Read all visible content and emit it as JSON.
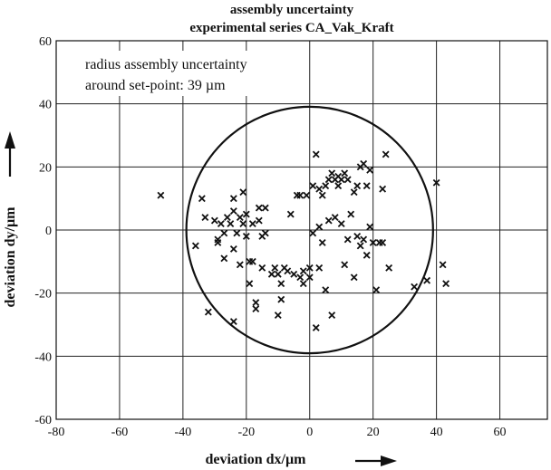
{
  "chart_data": {
    "type": "scatter",
    "title": "assembly uncertainty",
    "subtitle": "experimental series CA_Vak_Kraft",
    "xlabel": "deviation  dx/µm",
    "ylabel": "deviation  dy/µm",
    "xlim": [
      -80,
      75
    ],
    "ylim": [
      -60,
      60
    ],
    "xticks": [
      -80,
      -60,
      -40,
      -20,
      0,
      20,
      40,
      60
    ],
    "yticks": [
      -60,
      -40,
      -20,
      0,
      20,
      40,
      60
    ],
    "grid": true,
    "marker": "x",
    "annotation": {
      "line1": "radius assembly uncertainty",
      "line2": "around set-point: 39 µm"
    },
    "circle": {
      "center": [
        0,
        0
      ],
      "radius": 39
    },
    "points": [
      [
        -47,
        11
      ],
      [
        -36,
        -5
      ],
      [
        -34,
        10
      ],
      [
        -33,
        4
      ],
      [
        -32,
        -26
      ],
      [
        -30,
        3
      ],
      [
        -29,
        -3
      ],
      [
        -29,
        -4
      ],
      [
        -28,
        2
      ],
      [
        -27,
        -1
      ],
      [
        -27,
        -9
      ],
      [
        -26,
        4
      ],
      [
        -25,
        2
      ],
      [
        -24,
        10
      ],
      [
        -24,
        6
      ],
      [
        -24,
        -6
      ],
      [
        -24,
        -29
      ],
      [
        -23,
        -1
      ],
      [
        -22,
        4
      ],
      [
        -22,
        -11
      ],
      [
        -21,
        12
      ],
      [
        -21,
        2
      ],
      [
        -20,
        5
      ],
      [
        -20,
        -2
      ],
      [
        -19,
        -10
      ],
      [
        -19,
        -17
      ],
      [
        -18,
        2
      ],
      [
        -18,
        -10
      ],
      [
        -17,
        -23
      ],
      [
        -17,
        -25
      ],
      [
        -16,
        7
      ],
      [
        -16,
        3
      ],
      [
        -15,
        -2
      ],
      [
        -15,
        -12
      ],
      [
        -14,
        -1
      ],
      [
        -14,
        7
      ],
      [
        -12,
        -14
      ],
      [
        -11,
        -12
      ],
      [
        -10,
        -14
      ],
      [
        -10,
        -27
      ],
      [
        -9,
        -17
      ],
      [
        -9,
        -22
      ],
      [
        -8,
        -12
      ],
      [
        -7,
        -13
      ],
      [
        -6,
        5
      ],
      [
        -5,
        -14
      ],
      [
        -4,
        11
      ],
      [
        -3,
        11
      ],
      [
        -3,
        -15
      ],
      [
        -2,
        -17
      ],
      [
        -2,
        -13
      ],
      [
        -1,
        11
      ],
      [
        0,
        -15
      ],
      [
        0,
        -12
      ],
      [
        1,
        14
      ],
      [
        1,
        -1
      ],
      [
        2,
        24
      ],
      [
        2,
        -31
      ],
      [
        3,
        13
      ],
      [
        3,
        1
      ],
      [
        3,
        -12
      ],
      [
        4,
        11
      ],
      [
        4,
        -4
      ],
      [
        5,
        14
      ],
      [
        5,
        -19
      ],
      [
        6,
        16
      ],
      [
        6,
        3
      ],
      [
        7,
        18
      ],
      [
        7,
        -27
      ],
      [
        8,
        16
      ],
      [
        8,
        4
      ],
      [
        9,
        17
      ],
      [
        9,
        14
      ],
      [
        10,
        16
      ],
      [
        10,
        2
      ],
      [
        11,
        18
      ],
      [
        11,
        -11
      ],
      [
        12,
        16
      ],
      [
        12,
        -3
      ],
      [
        13,
        5
      ],
      [
        14,
        12
      ],
      [
        14,
        -15
      ],
      [
        15,
        14
      ],
      [
        15,
        -2
      ],
      [
        16,
        20
      ],
      [
        16,
        -5
      ],
      [
        17,
        21
      ],
      [
        17,
        -3
      ],
      [
        18,
        14
      ],
      [
        18,
        -8
      ],
      [
        19,
        19
      ],
      [
        19,
        1
      ],
      [
        20,
        -4
      ],
      [
        21,
        -19
      ],
      [
        22,
        -4
      ],
      [
        23,
        -4
      ],
      [
        24,
        24
      ],
      [
        25,
        -12
      ],
      [
        23,
        13
      ],
      [
        33,
        -18
      ],
      [
        37,
        -16
      ],
      [
        40,
        15
      ],
      [
        42,
        -11
      ],
      [
        43,
        -17
      ]
    ]
  }
}
